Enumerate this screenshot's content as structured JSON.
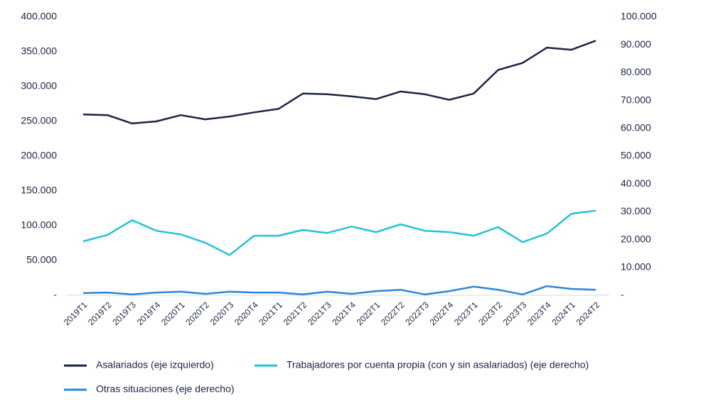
{
  "chart_data": {
    "type": "line",
    "categories": [
      "2019T1",
      "2019T2",
      "2019T3",
      "2019T4",
      "2020T1",
      "2020T2",
      "2020T3",
      "2020T4",
      "2021T1",
      "2021T2",
      "2021T3",
      "2021T4",
      "2022T1",
      "2022T2",
      "2022T3",
      "2022T4",
      "2023T1",
      "2023T2",
      "2023T3",
      "2023T4",
      "2024T1",
      "2024T2"
    ],
    "series": [
      {
        "name": "Asalariados (eje izquierdo)",
        "color": "#1b2447",
        "values": [
          260000,
          259000,
          247000,
          250000,
          259000,
          253000,
          257000,
          263000,
          268000,
          290000,
          289000,
          286000,
          282000,
          293000,
          289000,
          281000,
          290000,
          324000,
          334000,
          356000,
          353000,
          366000
        ]
      },
      {
        "name": "Trabajadores por cuenta propia (con y sin asalariados) (eje derecho)",
        "color": "#22c3d6",
        "axis": "y2",
        "values": [
          19400,
          21700,
          27000,
          23200,
          21900,
          18900,
          14500,
          21400,
          21400,
          23500,
          22400,
          24700,
          22700,
          25500,
          23200,
          22700,
          21400,
          24500,
          19100,
          22200,
          29300,
          30400
        ]
      },
      {
        "name": "Otras situaciones (eje derecho)",
        "color": "#2a86e0",
        "axis": "y2",
        "values": [
          800,
          1000,
          300,
          1000,
          1300,
          500,
          1300,
          1000,
          1000,
          300,
          1300,
          500,
          1500,
          2000,
          300,
          1500,
          3100,
          2000,
          300,
          3300,
          2300,
          2000
        ]
      }
    ],
    "ylim": [
      0,
      400000
    ],
    "yticks": [
      {
        "value": 0,
        "label": "-"
      },
      {
        "value": 50000,
        "label": "50.000"
      },
      {
        "value": 100000,
        "label": "100.000"
      },
      {
        "value": 150000,
        "label": "150.000"
      },
      {
        "value": 200000,
        "label": "200.000"
      },
      {
        "value": 250000,
        "label": "250.000"
      },
      {
        "value": 300000,
        "label": "300.000"
      },
      {
        "value": 350000,
        "label": "350.000"
      },
      {
        "value": 400000,
        "label": "400.000"
      }
    ],
    "y2lim": [
      0,
      100000
    ],
    "y2ticks": [
      {
        "value": 0,
        "label": "-"
      },
      {
        "value": 10000,
        "label": "10.000"
      },
      {
        "value": 20000,
        "label": "20.000"
      },
      {
        "value": 30000,
        "label": "30.000"
      },
      {
        "value": 40000,
        "label": "40.000"
      },
      {
        "value": 50000,
        "label": "50.000"
      },
      {
        "value": 60000,
        "label": "60.000"
      },
      {
        "value": 70000,
        "label": "70.000"
      },
      {
        "value": 80000,
        "label": "80.000"
      },
      {
        "value": 90000,
        "label": "90.000"
      },
      {
        "value": 100000,
        "label": "100.000"
      }
    ],
    "grid": false
  }
}
